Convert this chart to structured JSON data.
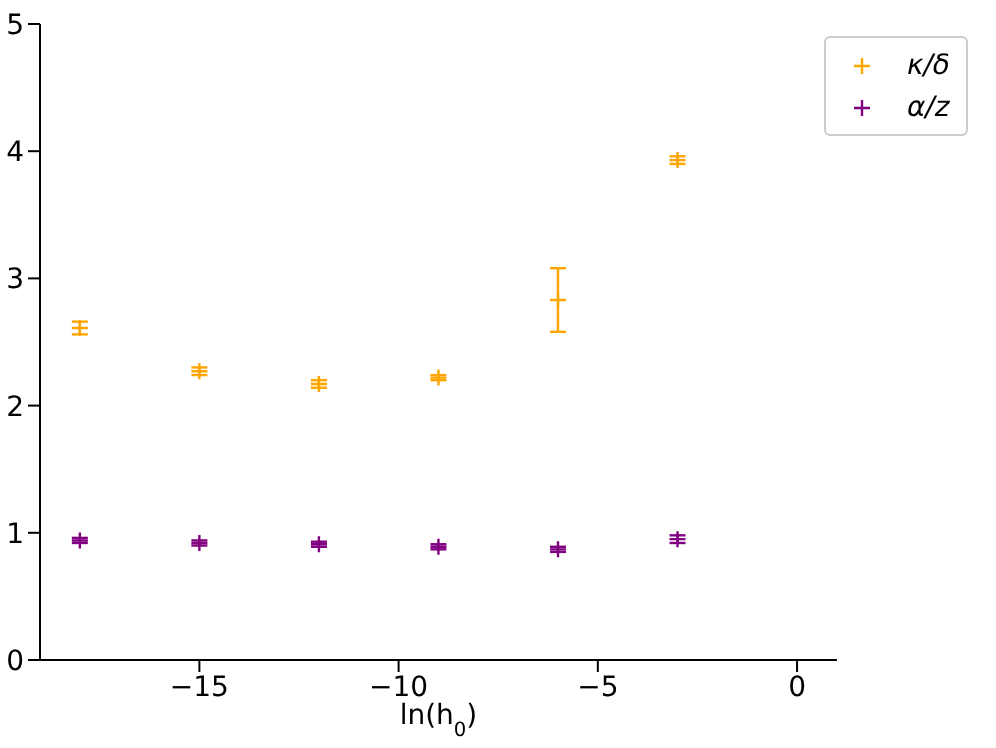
{
  "chart_data": {
    "type": "scatter",
    "xlabel": "ln(h$_{0}$)",
    "x": [
      -18,
      -15,
      -12,
      -9,
      -6,
      -3
    ],
    "series": [
      {
        "name": "κ/δ",
        "color": "#ffa500",
        "values": [
          2.61,
          2.27,
          2.17,
          2.22,
          2.83,
          3.93
        ],
        "errors": [
          0.05,
          0.03,
          0.03,
          0.02,
          0.25,
          0.03
        ]
      },
      {
        "name": "α/z",
        "color": "#800080",
        "values": [
          0.94,
          0.92,
          0.91,
          0.89,
          0.87,
          0.95
        ],
        "errors": [
          0.02,
          0.02,
          0.02,
          0.02,
          0.02,
          0.03
        ]
      }
    ],
    "xlim": [
      -19,
      1
    ],
    "xticks": [
      -15,
      -10,
      -5,
      0
    ],
    "ylim": [
      0,
      5
    ],
    "yticks": [
      0,
      1,
      2,
      3,
      4,
      5
    ],
    "grid": false,
    "legend": "top right",
    "marker": "cross"
  }
}
